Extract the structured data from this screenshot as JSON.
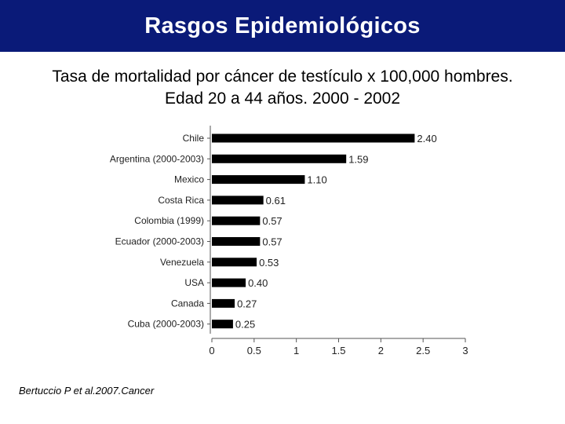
{
  "slide": {
    "title": "Rasgos Epidemiológicos",
    "subtitle_line1": "Tasa de mortalidad por cáncer de testículo x 100,000 hombres.",
    "subtitle_line2": "Edad 20 a 44 años. 2000 - 2002",
    "citation": "Bertuccio P et al.2007.Cancer"
  },
  "colors": {
    "title_bar": "#0a1a78",
    "bar": "#000000",
    "axis": "#555555"
  },
  "chart_data": {
    "type": "bar",
    "orientation": "horizontal",
    "categories": [
      "Chile",
      "Argentina (2000-2003)",
      "Mexico",
      "Costa Rica",
      "Colombia (1999)",
      "Ecuador (2000-2003)",
      "Venezuela",
      "USA",
      "Canada",
      "Cuba (2000-2003)"
    ],
    "values": [
      2.4,
      1.59,
      1.1,
      0.61,
      0.57,
      0.57,
      0.53,
      0.4,
      0.27,
      0.25
    ],
    "value_labels": [
      "2.40",
      "1.59",
      "1.10",
      "0.61",
      "0.57",
      "0.57",
      "0.53",
      "0.40",
      "0.27",
      "0.25"
    ],
    "xlim": [
      0,
      3
    ],
    "xticks": [
      0,
      0.5,
      1,
      1.5,
      2,
      2.5,
      3
    ],
    "xtick_labels": [
      "0",
      "0.5",
      "1",
      "1.5",
      "2",
      "2.5",
      "3"
    ],
    "xlabel": "",
    "ylabel": "",
    "grid": false,
    "legend": "none"
  }
}
